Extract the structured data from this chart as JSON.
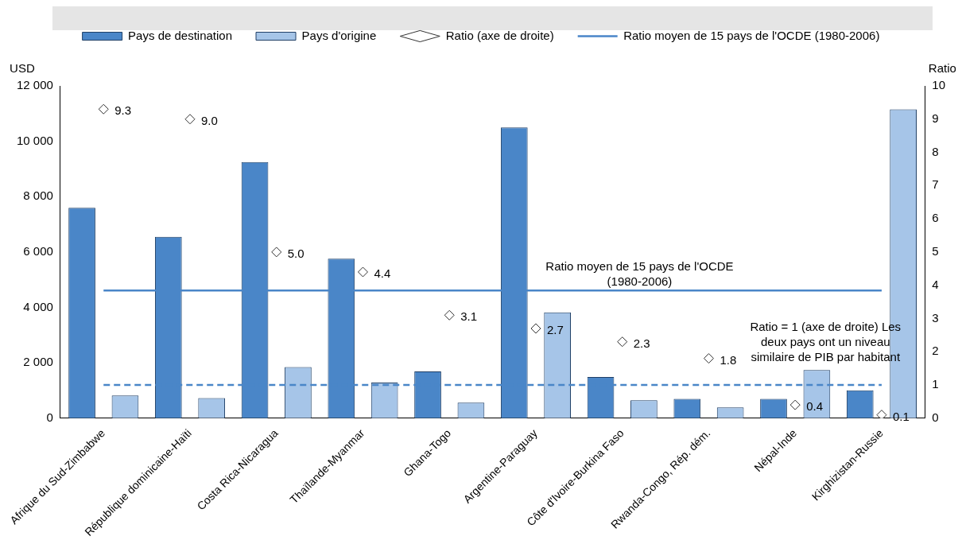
{
  "chart_data": {
    "type": "bar",
    "ylabel": "USD",
    "y2label": "Ratio",
    "categories": [
      "Afrique du Sud-Zimbabwe",
      "République dominicaine-Haïti",
      "Costa Rica-Nicaragua",
      "Thaïlande-Myanmar",
      "Ghana-Togo",
      "Argentine-Paraguay",
      "Côte d'Ivoire-Burkina Faso",
      "Rwanda-Congo, Rép. dém.",
      "Népal-Inde",
      "Kirghizistan-Russie"
    ],
    "series": [
      {
        "name": "Pays de destination",
        "color": "#4a86c8",
        "values": [
          7600,
          6550,
          9250,
          5760,
          1690,
          10500,
          1490,
          700,
          700,
          1010
        ]
      },
      {
        "name": "Pays d'origine",
        "color": "#a6c5e8",
        "values": [
          820,
          730,
          1850,
          1290,
          560,
          3820,
          650,
          390,
          1740,
          11150
        ]
      },
      {
        "name": "Ratio (axe de droite)",
        "type": "scatter",
        "axis": "y2",
        "marker": "diamond",
        "color": "#333333",
        "values": [
          9.3,
          9.0,
          5.0,
          4.4,
          3.1,
          2.7,
          2.3,
          1.8,
          0.4,
          0.1
        ],
        "value_labels": [
          "9.3",
          "9.0",
          "5.0",
          "4.4",
          "3.1",
          "2.7",
          "2.3",
          "1.8",
          "0.4",
          "0.1"
        ]
      },
      {
        "name": "Ratio moyen de 15 pays de l'OCDE (1980-2006)",
        "type": "line",
        "axis": "y2",
        "marker": "none",
        "line_style": "solid",
        "color": "#4a86c8",
        "values": [
          3.84,
          3.84,
          3.84,
          3.84,
          3.84,
          3.84,
          3.84,
          3.84,
          3.84,
          3.84
        ]
      }
    ],
    "ylim": [
      0,
      12000
    ],
    "yticks": [
      0,
      {
        "value": 2000,
        "label": "2 000"
      },
      {
        "value": 4000,
        "label": "4 000"
      },
      {
        "value": 6000,
        "label": "6 000"
      },
      {
        "value": 8000,
        "label": "8 000"
      },
      {
        "value": 10000,
        "label": "10 000"
      },
      {
        "value": 12000,
        "label": "12 000"
      }
    ],
    "y2lim": [
      0,
      10
    ],
    "y2ticks": [
      0,
      1,
      2,
      3,
      4,
      5,
      6,
      7,
      8,
      9,
      10
    ],
    "ref_lines": [
      {
        "axis": "y2",
        "value": 1,
        "label": "Ratio = 1 (axe de droite) Les deux pays ont un niveau similaire de PIB par habitant",
        "color": "#4a86c8",
        "line_style": "dashed"
      }
    ],
    "annotations": [
      "Ratio moyen de 15 pays de l'OCDE (1980-2006)"
    ],
    "legend": "top"
  }
}
